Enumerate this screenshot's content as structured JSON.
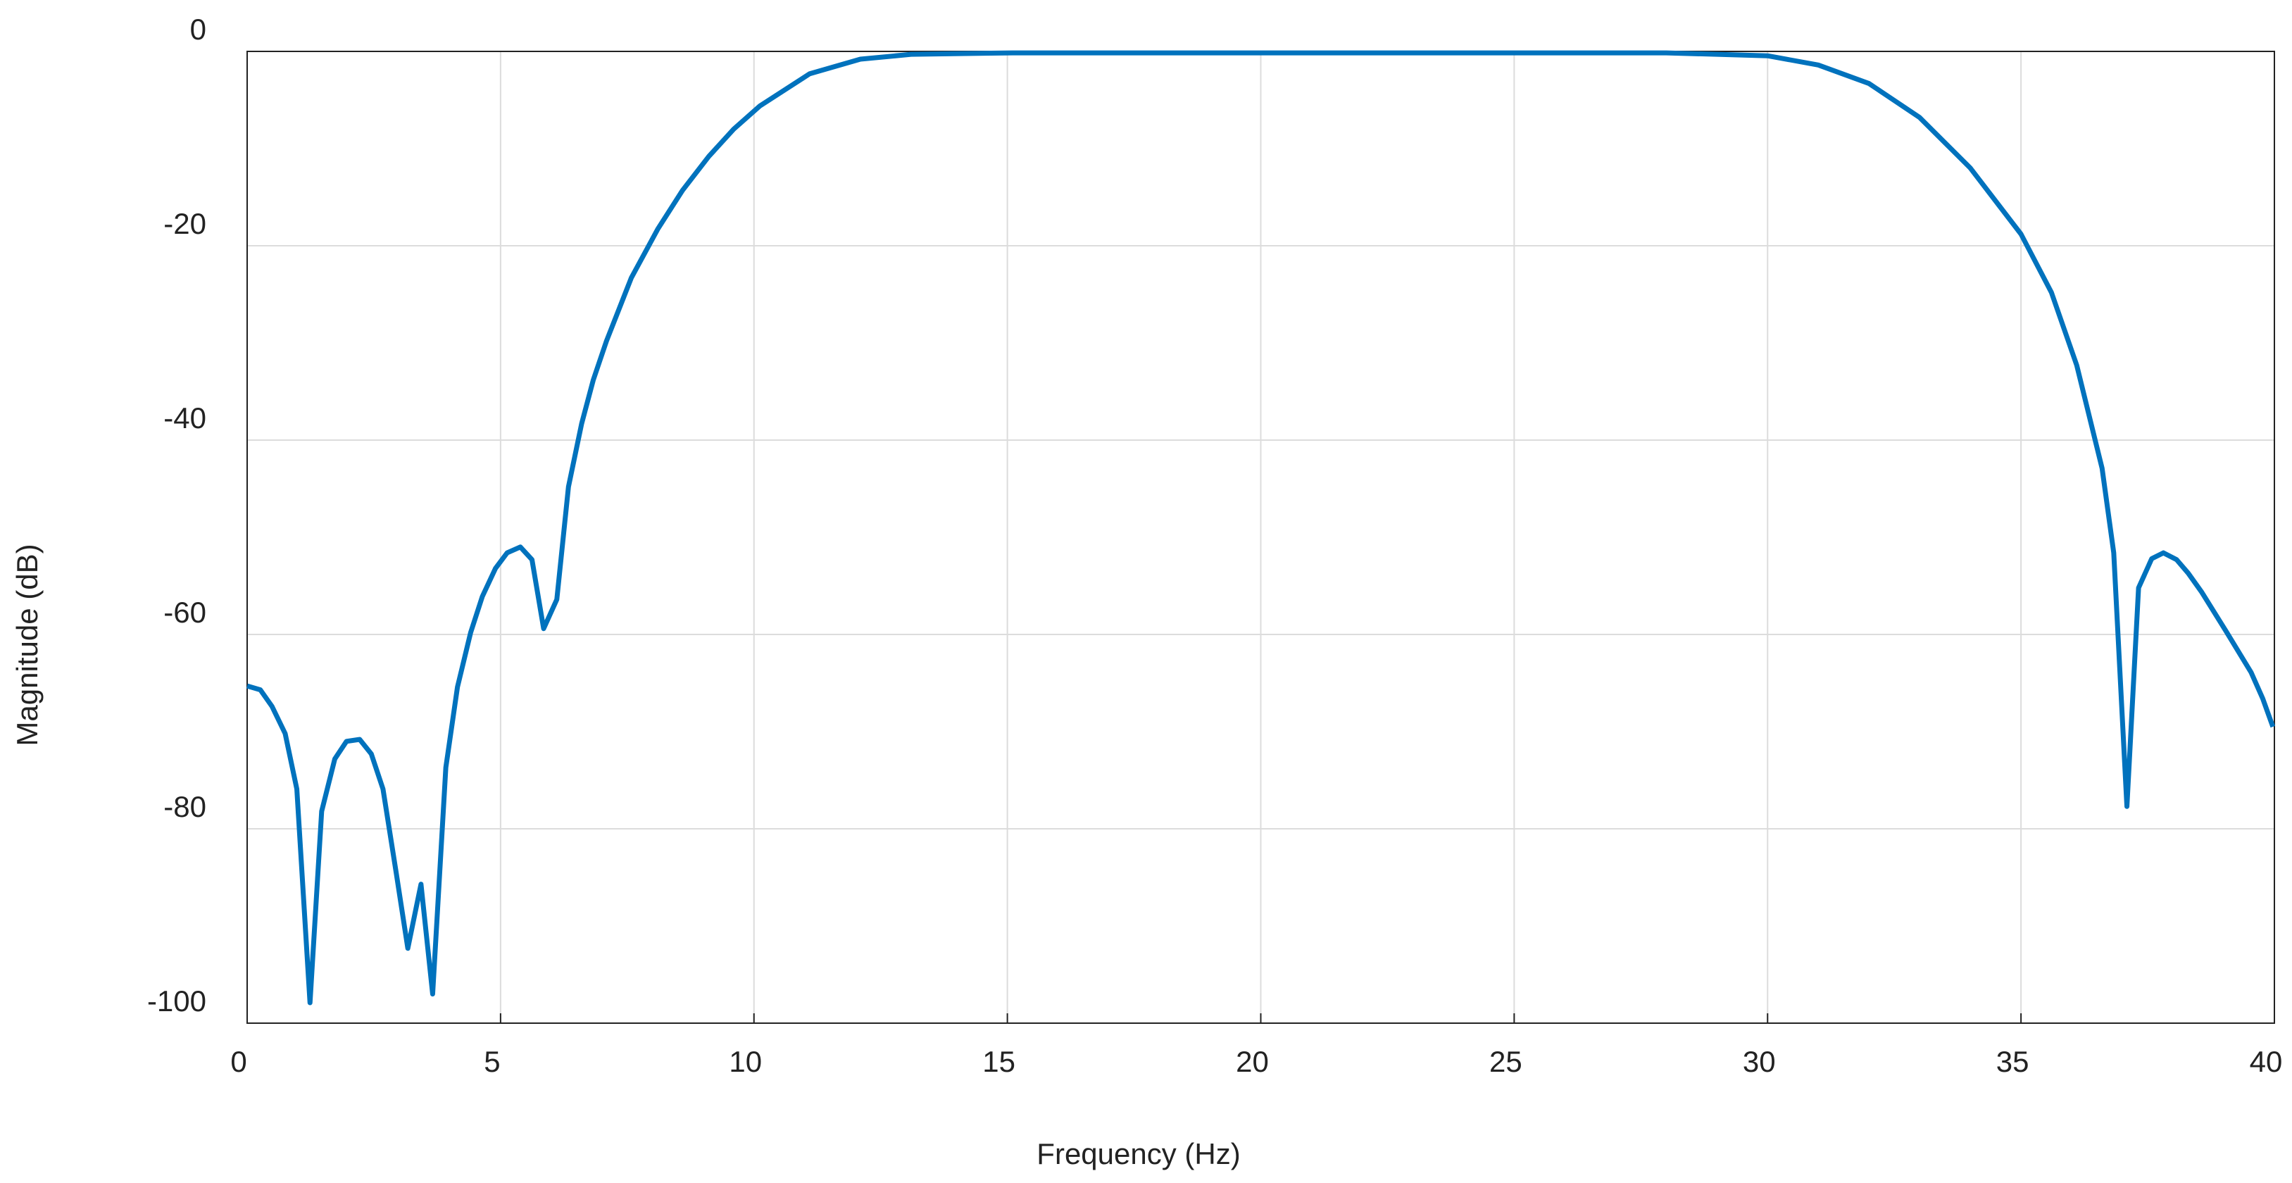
{
  "chart_data": {
    "type": "line",
    "xlabel": "Frequency (Hz)",
    "ylabel": "Magnitude (dB)",
    "xlim": [
      0,
      40
    ],
    "ylim": [
      -100,
      0
    ],
    "xticks": [
      0,
      5,
      10,
      15,
      20,
      25,
      30,
      35,
      40
    ],
    "yticks": [
      0,
      -20,
      -40,
      -60,
      -80,
      -100
    ],
    "grid": true,
    "series": [
      {
        "color": "#0072bd",
        "x": [
          0,
          0.26,
          0.49,
          0.75,
          0.98,
          1.24,
          1.47,
          1.73,
          1.96,
          2.22,
          2.45,
          2.68,
          2.94,
          3.17,
          3.43,
          3.66,
          3.92,
          4.15,
          4.41,
          4.64,
          4.9,
          5.13,
          5.39,
          5.62,
          5.85,
          6.11,
          6.34,
          6.6,
          6.83,
          7.09,
          7.58,
          8.1,
          8.59,
          9.11,
          9.6,
          10.12,
          11.1,
          12.1,
          13.1,
          15.1,
          21.1,
          28,
          30,
          31,
          32,
          33,
          34,
          35,
          35.6,
          36.1,
          36.6,
          36.83,
          37.09,
          37.32,
          37.58,
          37.81,
          38.07,
          38.3,
          38.56,
          39.05,
          39.54,
          39.77,
          39.97
        ],
        "values": [
          -65.3,
          -65.7,
          -67.4,
          -70.2,
          -75.9,
          -97.9,
          -78.2,
          -72.8,
          -71.0,
          -70.8,
          -72.3,
          -75.9,
          -84.5,
          -92.3,
          -85.7,
          -97.0,
          -73.7,
          -65.4,
          -59.8,
          -56.1,
          -53.2,
          -51.6,
          -51.0,
          -52.3,
          -59.4,
          -56.4,
          -44.8,
          -38.3,
          -33.8,
          -29.8,
          -23.3,
          -18.3,
          -14.3,
          -10.8,
          -8.0,
          -5.6,
          -2.3,
          -0.8,
          -0.3,
          -0.15,
          -0.15,
          -0.15,
          -0.45,
          -1.4,
          -3.3,
          -6.8,
          -12,
          -18.8,
          -24.8,
          -32.3,
          -42.9,
          -51.6,
          -77.7,
          -55.2,
          -52.2,
          -51.6,
          -52.3,
          -53.7,
          -55.6,
          -59.7,
          -63.9,
          -66.6,
          -69.5
        ]
      }
    ]
  }
}
